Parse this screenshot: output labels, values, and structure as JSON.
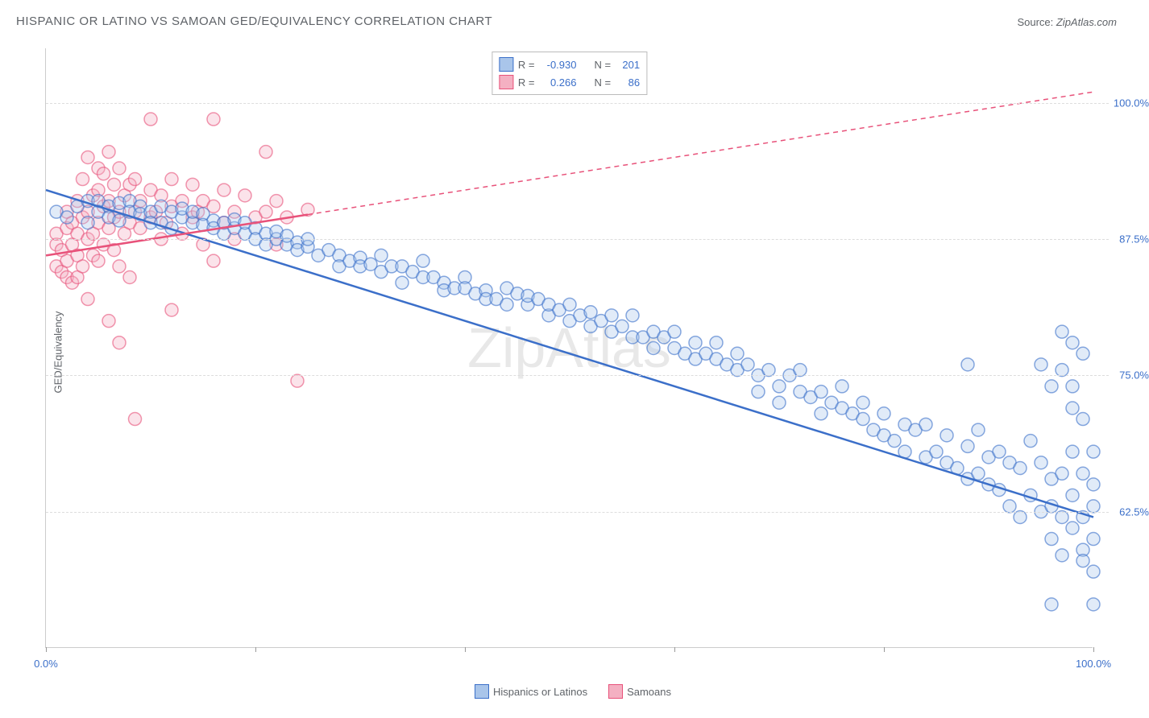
{
  "title": "HISPANIC OR LATINO VS SAMOAN GED/EQUIVALENCY CORRELATION CHART",
  "source_label": "Source: ",
  "source_site": "ZipAtlas.com",
  "y_axis_label": "GED/Equivalency",
  "watermark": "ZipAtlas",
  "chart": {
    "type": "scatter",
    "x_domain": [
      0,
      100
    ],
    "y_domain": [
      50,
      105
    ],
    "y_ticks": [
      {
        "v": 62.5,
        "label": "62.5%"
      },
      {
        "v": 75.0,
        "label": "75.0%"
      },
      {
        "v": 87.5,
        "label": "87.5%"
      },
      {
        "v": 100.0,
        "label": "100.0%"
      }
    ],
    "x_ticks": [
      0,
      20,
      40,
      60,
      80,
      100
    ],
    "x_tick_labels": {
      "0": "0.0%",
      "100": "100.0%"
    },
    "background_color": "#ffffff",
    "grid_color": "#dddddd",
    "tick_label_color_x": "#3b6fc9",
    "tick_label_color_y": "#3b6fc9",
    "marker": {
      "radius": 8,
      "stroke_width": 1.5,
      "fill_opacity": 0.35
    },
    "series": [
      {
        "name": "Hispanics or Latinos",
        "short": "hisp",
        "color": "#3b6fc9",
        "fill": "#a9c5ea",
        "r": "-0.930",
        "n": "201",
        "reg_line": {
          "x1": 0,
          "y1": 92.0,
          "x2": 100,
          "y2": 62.0,
          "dash_from_x": null
        },
        "points": [
          [
            1,
            90
          ],
          [
            2,
            89.5
          ],
          [
            3,
            90.5
          ],
          [
            4,
            91
          ],
          [
            4,
            89
          ],
          [
            5,
            91
          ],
          [
            5,
            90
          ],
          [
            6,
            90.5
          ],
          [
            6,
            89.5
          ],
          [
            7,
            90.8
          ],
          [
            7,
            89.2
          ],
          [
            8,
            91
          ],
          [
            8,
            90
          ],
          [
            9,
            90.5
          ],
          [
            9,
            89.8
          ],
          [
            10,
            90
          ],
          [
            10,
            89
          ],
          [
            11,
            90.5
          ],
          [
            11,
            89
          ],
          [
            12,
            90
          ],
          [
            12,
            88.5
          ],
          [
            13,
            89.5
          ],
          [
            13,
            90.3
          ],
          [
            14,
            89
          ],
          [
            14,
            90
          ],
          [
            15,
            89.8
          ],
          [
            15,
            88.8
          ],
          [
            16,
            89.2
          ],
          [
            16,
            88.5
          ],
          [
            17,
            89
          ],
          [
            17,
            88
          ],
          [
            18,
            88.5
          ],
          [
            18,
            89.3
          ],
          [
            19,
            88
          ],
          [
            19,
            89
          ],
          [
            20,
            88.5
          ],
          [
            20,
            87.5
          ],
          [
            21,
            88
          ],
          [
            21,
            87
          ],
          [
            22,
            87.5
          ],
          [
            22,
            88.2
          ],
          [
            23,
            87
          ],
          [
            23,
            87.8
          ],
          [
            24,
            87.2
          ],
          [
            24,
            86.5
          ],
          [
            25,
            86.8
          ],
          [
            25,
            87.5
          ],
          [
            26,
            86
          ],
          [
            27,
            86.5
          ],
          [
            28,
            86
          ],
          [
            28,
            85
          ],
          [
            29,
            85.5
          ],
          [
            30,
            85.8
          ],
          [
            30,
            85
          ],
          [
            31,
            85.2
          ],
          [
            32,
            84.5
          ],
          [
            32,
            86
          ],
          [
            33,
            85
          ],
          [
            34,
            83.5
          ],
          [
            34,
            85
          ],
          [
            35,
            84.5
          ],
          [
            36,
            84
          ],
          [
            36,
            85.5
          ],
          [
            37,
            84
          ],
          [
            38,
            83.5
          ],
          [
            38,
            82.8
          ],
          [
            39,
            83
          ],
          [
            40,
            84
          ],
          [
            40,
            83
          ],
          [
            41,
            82.5
          ],
          [
            42,
            82.8
          ],
          [
            42,
            82
          ],
          [
            43,
            82
          ],
          [
            44,
            81.5
          ],
          [
            44,
            83
          ],
          [
            45,
            82.5
          ],
          [
            46,
            81.5
          ],
          [
            46,
            82.3
          ],
          [
            47,
            82
          ],
          [
            48,
            80.5
          ],
          [
            48,
            81.5
          ],
          [
            49,
            81
          ],
          [
            50,
            80
          ],
          [
            50,
            81.5
          ],
          [
            51,
            80.5
          ],
          [
            52,
            79.5
          ],
          [
            52,
            80.8
          ],
          [
            53,
            80
          ],
          [
            54,
            80.5
          ],
          [
            54,
            79
          ],
          [
            55,
            79.5
          ],
          [
            56,
            78.5
          ],
          [
            56,
            80.5
          ],
          [
            57,
            78.5
          ],
          [
            58,
            79
          ],
          [
            58,
            77.5
          ],
          [
            59,
            78.5
          ],
          [
            60,
            77.5
          ],
          [
            60,
            79
          ],
          [
            61,
            77
          ],
          [
            62,
            78
          ],
          [
            62,
            76.5
          ],
          [
            63,
            77
          ],
          [
            64,
            76.5
          ],
          [
            64,
            78
          ],
          [
            65,
            76
          ],
          [
            66,
            75.5
          ],
          [
            66,
            77
          ],
          [
            67,
            76
          ],
          [
            68,
            75
          ],
          [
            68,
            73.5
          ],
          [
            69,
            75.5
          ],
          [
            70,
            74
          ],
          [
            70,
            72.5
          ],
          [
            71,
            75
          ],
          [
            72,
            73.5
          ],
          [
            72,
            75.5
          ],
          [
            73,
            73
          ],
          [
            74,
            73.5
          ],
          [
            74,
            71.5
          ],
          [
            75,
            72.5
          ],
          [
            76,
            72
          ],
          [
            76,
            74
          ],
          [
            77,
            71.5
          ],
          [
            78,
            71
          ],
          [
            78,
            72.5
          ],
          [
            79,
            70
          ],
          [
            80,
            71.5
          ],
          [
            80,
            69.5
          ],
          [
            81,
            69
          ],
          [
            82,
            70.5
          ],
          [
            82,
            68
          ],
          [
            83,
            70
          ],
          [
            84,
            67.5
          ],
          [
            84,
            70.5
          ],
          [
            85,
            68
          ],
          [
            86,
            69.5
          ],
          [
            86,
            67
          ],
          [
            87,
            66.5
          ],
          [
            88,
            68.5
          ],
          [
            88,
            65.5
          ],
          [
            89,
            70
          ],
          [
            89,
            66
          ],
          [
            90,
            67.5
          ],
          [
            90,
            65
          ],
          [
            91,
            68
          ],
          [
            91,
            64.5
          ],
          [
            92,
            63
          ],
          [
            92,
            67
          ],
          [
            93,
            66.5
          ],
          [
            93,
            62
          ],
          [
            94,
            69
          ],
          [
            94,
            64
          ],
          [
            95,
            67
          ],
          [
            95,
            62.5
          ],
          [
            95,
            76
          ],
          [
            96,
            63
          ],
          [
            96,
            65.5
          ],
          [
            96,
            60
          ],
          [
            96,
            74
          ],
          [
            97,
            66
          ],
          [
            97,
            62
          ],
          [
            97,
            58.5
          ],
          [
            97,
            79
          ],
          [
            97,
            75.5
          ],
          [
            98,
            64
          ],
          [
            98,
            61
          ],
          [
            98,
            68
          ],
          [
            98,
            72
          ],
          [
            98,
            78
          ],
          [
            98,
            74
          ],
          [
            99,
            62
          ],
          [
            99,
            59
          ],
          [
            99,
            66
          ],
          [
            99,
            77
          ],
          [
            99,
            71
          ],
          [
            99,
            58
          ],
          [
            100,
            63
          ],
          [
            100,
            60
          ],
          [
            100,
            65
          ],
          [
            100,
            57
          ],
          [
            100,
            68
          ],
          [
            100,
            54
          ],
          [
            96,
            54
          ],
          [
            88,
            76
          ]
        ]
      },
      {
        "name": "Samoans",
        "short": "samoan",
        "color": "#e8527a",
        "fill": "#f4b0c2",
        "r": "0.266",
        "n": "86",
        "reg_line": {
          "x1": 0,
          "y1": 86.0,
          "x2": 100,
          "y2": 101.0,
          "dash_from_x": 25
        },
        "points": [
          [
            1,
            87
          ],
          [
            1,
            85
          ],
          [
            1,
            88
          ],
          [
            1.5,
            86.5
          ],
          [
            1.5,
            84.5
          ],
          [
            2,
            88.5
          ],
          [
            2,
            85.5
          ],
          [
            2,
            84
          ],
          [
            2,
            90
          ],
          [
            2.5,
            87
          ],
          [
            2.5,
            89
          ],
          [
            2.5,
            83.5
          ],
          [
            3,
            86
          ],
          [
            3,
            88
          ],
          [
            3,
            91
          ],
          [
            3,
            84
          ],
          [
            3.5,
            89.5
          ],
          [
            3.5,
            85
          ],
          [
            3.5,
            93
          ],
          [
            4,
            87.5
          ],
          [
            4,
            90
          ],
          [
            4,
            82
          ],
          [
            4,
            95
          ],
          [
            4.5,
            88
          ],
          [
            4.5,
            91.5
          ],
          [
            4.5,
            86
          ],
          [
            5,
            89
          ],
          [
            5,
            92
          ],
          [
            5,
            94
          ],
          [
            5,
            85.5
          ],
          [
            5.5,
            90.5
          ],
          [
            5.5,
            87
          ],
          [
            5.5,
            93.5
          ],
          [
            6,
            91
          ],
          [
            6,
            88.5
          ],
          [
            6,
            95.5
          ],
          [
            6,
            80
          ],
          [
            6.5,
            89.5
          ],
          [
            6.5,
            92.5
          ],
          [
            6.5,
            86.5
          ],
          [
            7,
            90
          ],
          [
            7,
            94
          ],
          [
            7,
            85
          ],
          [
            7,
            78
          ],
          [
            7.5,
            91.5
          ],
          [
            7.5,
            88
          ],
          [
            8,
            89
          ],
          [
            8,
            92.5
          ],
          [
            8,
            84
          ],
          [
            8.5,
            90
          ],
          [
            8.5,
            93
          ],
          [
            8.5,
            71
          ],
          [
            9,
            88.5
          ],
          [
            9,
            91
          ],
          [
            10,
            89.5
          ],
          [
            10,
            92
          ],
          [
            10,
            98.5
          ],
          [
            10.5,
            90
          ],
          [
            11,
            91.5
          ],
          [
            11,
            87.5
          ],
          [
            11.5,
            89
          ],
          [
            12,
            90.5
          ],
          [
            12,
            93
          ],
          [
            12,
            81
          ],
          [
            13,
            88
          ],
          [
            13,
            91
          ],
          [
            14,
            89.5
          ],
          [
            14,
            92.5
          ],
          [
            14.5,
            90
          ],
          [
            15,
            91
          ],
          [
            15,
            87
          ],
          [
            16,
            90.5
          ],
          [
            16,
            85.5
          ],
          [
            16,
            98.5
          ],
          [
            17,
            89
          ],
          [
            17,
            92
          ],
          [
            18,
            90
          ],
          [
            18,
            87.5
          ],
          [
            19,
            91.5
          ],
          [
            20,
            89.5
          ],
          [
            21,
            90
          ],
          [
            21,
            95.5
          ],
          [
            22,
            91
          ],
          [
            22,
            87
          ],
          [
            23,
            89.5
          ],
          [
            25,
            90.2
          ],
          [
            24,
            74.5
          ]
        ]
      }
    ]
  },
  "stats_box": {
    "r_label": "R =",
    "n_label": "N ="
  },
  "colors": {
    "text": "#5f6368",
    "blue": "#3b6fc9",
    "blue_fill": "#a9c5ea",
    "pink": "#e8527a",
    "pink_fill": "#f4b0c2"
  }
}
